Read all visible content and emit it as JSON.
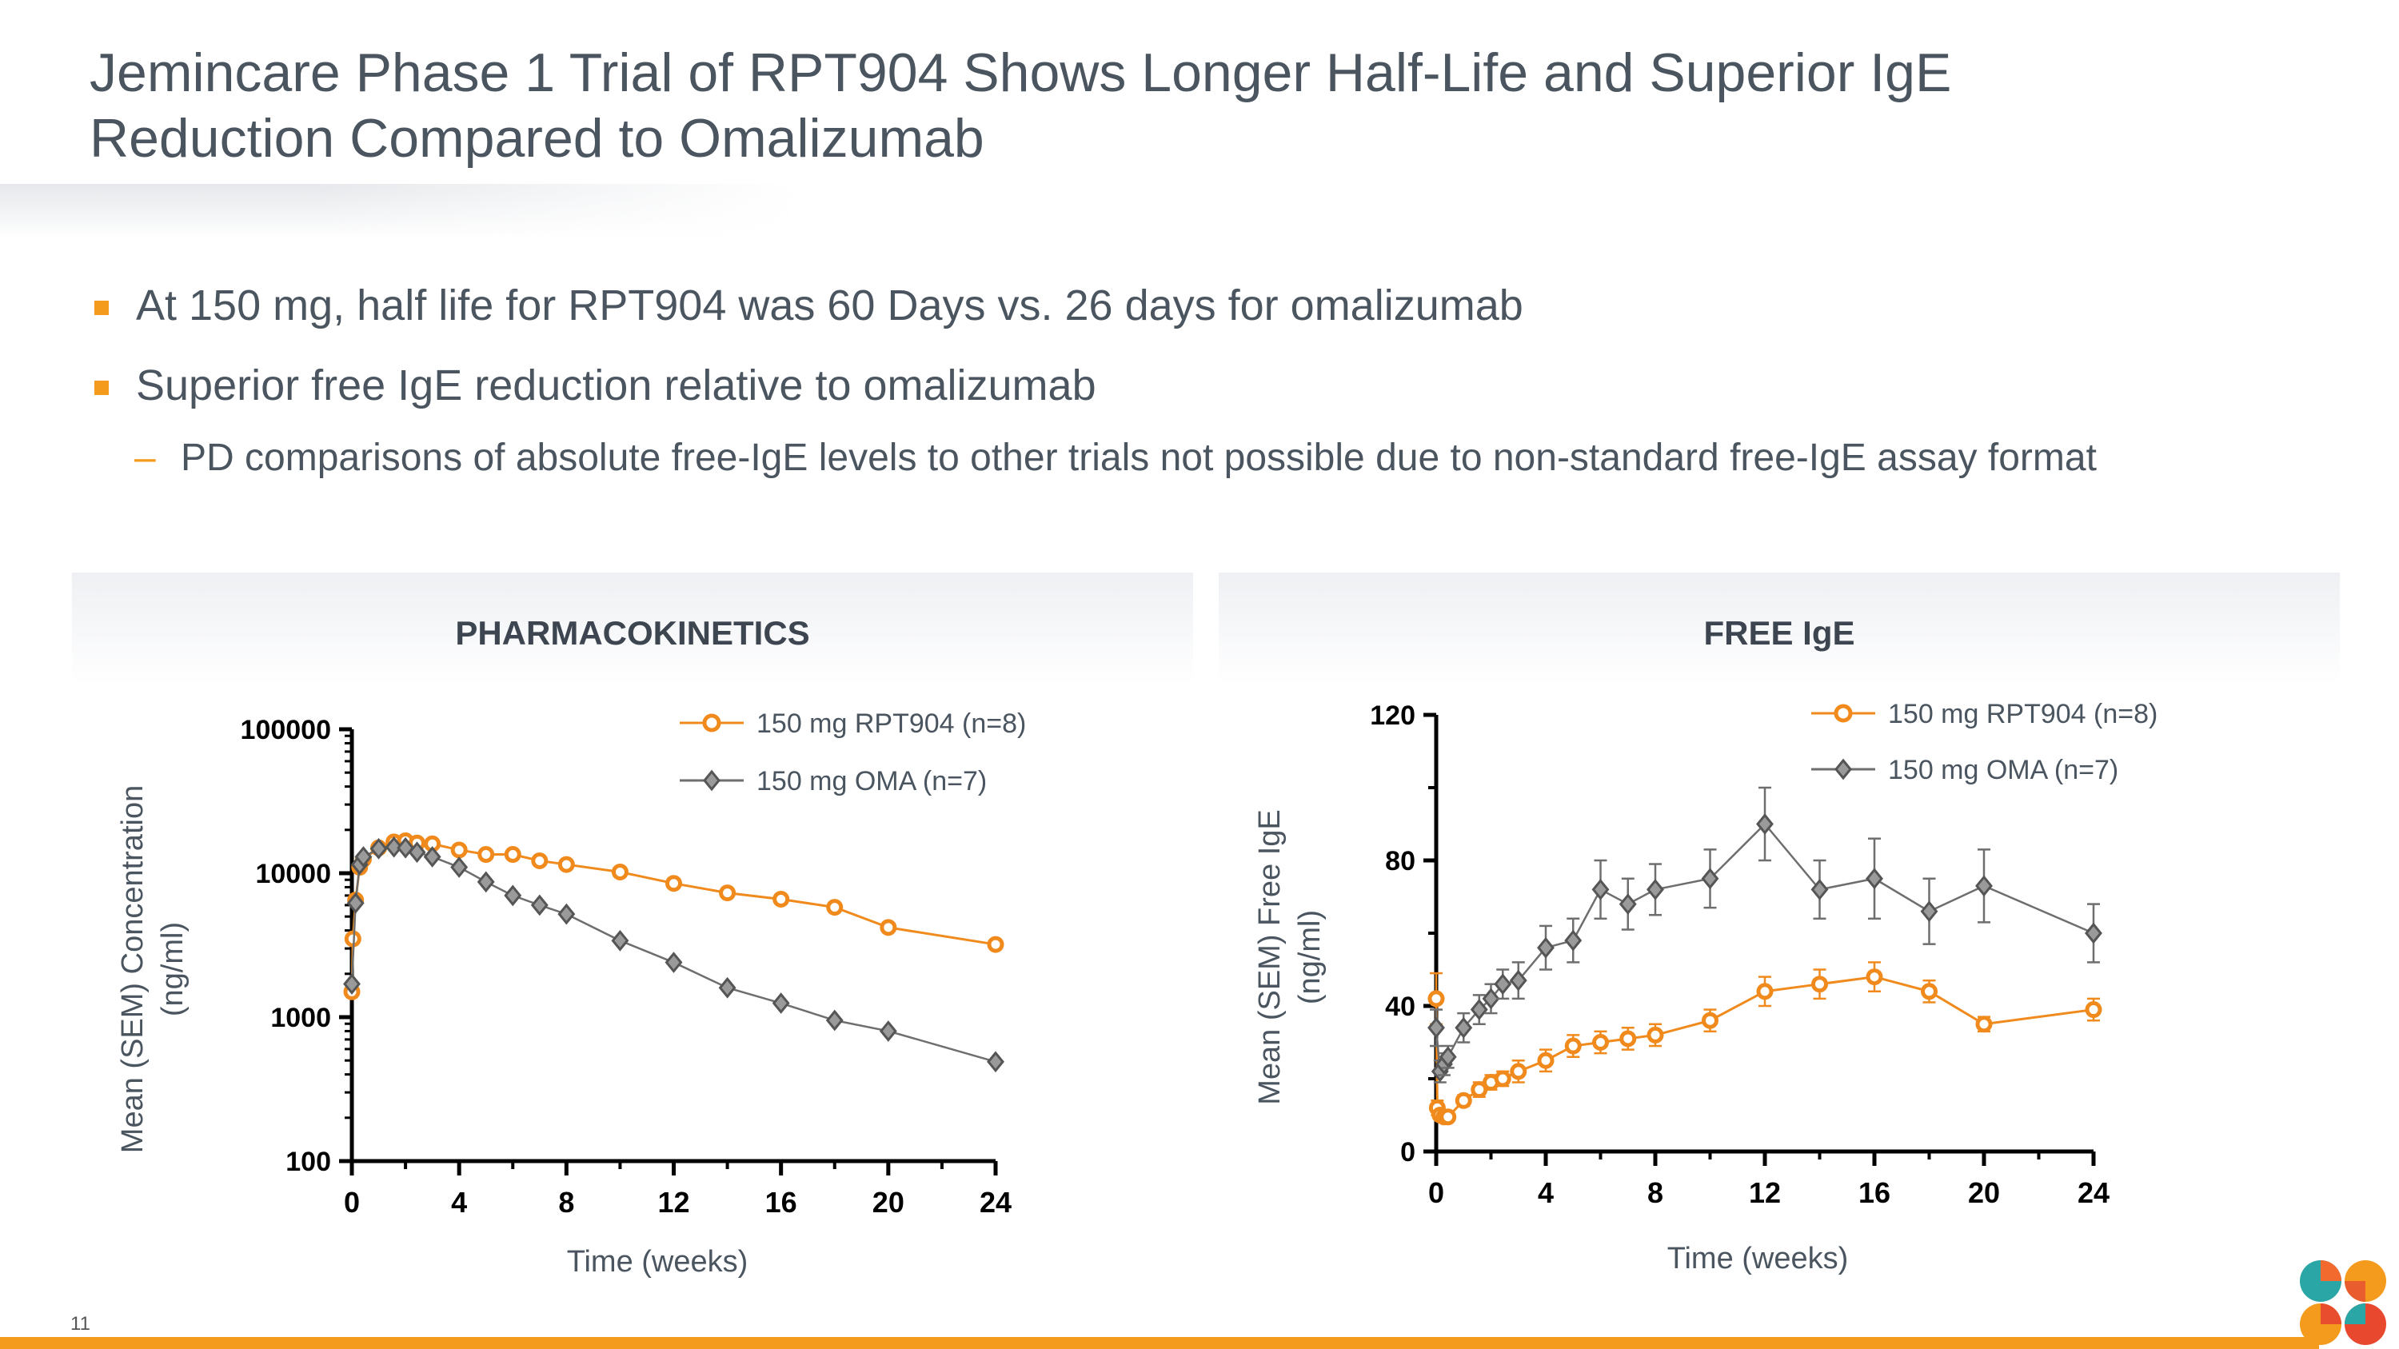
{
  "title_lines": [
    "Jemincare Phase 1 Trial of RPT904 Shows Longer Half-Life and Superior IgE",
    "Reduction Compared to Omalizumab"
  ],
  "bullets": [
    "At 150 mg, half life for RPT904 was 60 Days vs. 26 days for omalizumab",
    "Superior free IgE reduction relative to omalizumab"
  ],
  "sub_bullets": [
    "PD comparisons of absolute free-IgE levels to other trials not possible due to non-standard free-IgE assay format"
  ],
  "panels": {
    "left_title": "PHARMACOKINETICS",
    "right_title": "FREE IgE"
  },
  "page_number": "11",
  "colors": {
    "accent": "#f49a1c",
    "rpt904": "#f08a1c",
    "oma": "#6e6e6e",
    "title": "#4a5560"
  },
  "chart_data": [
    {
      "type": "line",
      "title": "PHARMACOKINETICS",
      "xlabel": "Time (weeks)",
      "ylabel": "Mean (SEM) Concentration (ng/ml)",
      "ylabel_lines": [
        "Mean (SEM) Concentration",
        "(ng/ml)"
      ],
      "yscale": "log",
      "xlim": [
        0,
        24
      ],
      "ylim": [
        100,
        100000
      ],
      "xticks": [
        0,
        4,
        8,
        12,
        16,
        20,
        24
      ],
      "yticks": [
        100,
        1000,
        10000,
        100000
      ],
      "ytick_labels": [
        "100",
        "1000",
        "10000",
        "100000"
      ],
      "legend": "top-right",
      "series": [
        {
          "name": "150 mg RPT904 (n=8)",
          "marker": "circle",
          "x": [
            0,
            0.04,
            0.14,
            0.29,
            0.43,
            1,
            1.57,
            2,
            2.43,
            3,
            4,
            5,
            6,
            7,
            8,
            10,
            12,
            14,
            16,
            18,
            20,
            24
          ],
          "y": [
            1500,
            3500,
            6500,
            11000,
            12500,
            15000,
            16500,
            16800,
            16200,
            16000,
            14500,
            13500,
            13500,
            12200,
            11500,
            10200,
            8500,
            7300,
            6600,
            5800,
            4200,
            3200
          ]
        },
        {
          "name": "150 mg OMA (n=7)",
          "marker": "diamond",
          "x": [
            0,
            0.14,
            0.29,
            0.43,
            1,
            1.57,
            2,
            2.43,
            3,
            4,
            5,
            6,
            7,
            8,
            10,
            12,
            14,
            16,
            18,
            20,
            24
          ],
          "y": [
            1700,
            6200,
            11500,
            13000,
            14800,
            15200,
            15000,
            14000,
            13000,
            11000,
            8700,
            7000,
            6000,
            5200,
            3400,
            2400,
            1600,
            1250,
            950,
            800,
            490
          ]
        }
      ]
    },
    {
      "type": "line",
      "title": "FREE IgE",
      "xlabel": "Time (weeks)",
      "ylabel": "Mean (SEM) Free IgE (ng/ml)",
      "ylabel_lines": [
        "Mean (SEM) Free IgE",
        "(ng/ml)"
      ],
      "yscale": "linear",
      "xlim": [
        0,
        24
      ],
      "ylim": [
        0,
        120
      ],
      "xticks": [
        0,
        4,
        8,
        12,
        16,
        20,
        24
      ],
      "yticks": [
        0,
        40,
        80,
        120
      ],
      "ytick_labels": [
        "0",
        "40",
        "80",
        "120"
      ],
      "legend": "top-right",
      "series": [
        {
          "name": "150 mg RPT904 (n=8)",
          "marker": "circle",
          "x": [
            0,
            0.04,
            0.14,
            0.29,
            0.43,
            1,
            1.57,
            2,
            2.43,
            3,
            4,
            5,
            6,
            7,
            8,
            10,
            12,
            14,
            16,
            18,
            20,
            24
          ],
          "y": [
            42,
            12,
            10,
            9.5,
            9.5,
            14,
            17,
            19,
            20,
            22,
            25,
            29,
            30,
            31,
            32,
            36,
            44,
            46,
            48,
            44,
            35,
            39
          ],
          "err": [
            7,
            2,
            1,
            1,
            1,
            1.5,
            2,
            2,
            2,
            3,
            3,
            3,
            3,
            3,
            3,
            3,
            4,
            4,
            4,
            3,
            2,
            3
          ]
        },
        {
          "name": "150 mg OMA (n=7)",
          "marker": "diamond",
          "x": [
            0,
            0.14,
            0.29,
            0.43,
            1,
            1.57,
            2,
            2.43,
            3,
            4,
            5,
            6,
            7,
            8,
            10,
            12,
            14,
            16,
            18,
            20,
            24
          ],
          "y": [
            34,
            22,
            24,
            26,
            34,
            39,
            42,
            46,
            47,
            56,
            58,
            72,
            68,
            72,
            75,
            90,
            72,
            75,
            66,
            73,
            60
          ],
          "err": [
            5,
            3,
            3,
            3,
            4,
            4,
            4,
            4,
            5,
            6,
            6,
            8,
            7,
            7,
            8,
            10,
            8,
            11,
            9,
            10,
            8
          ]
        }
      ]
    }
  ]
}
